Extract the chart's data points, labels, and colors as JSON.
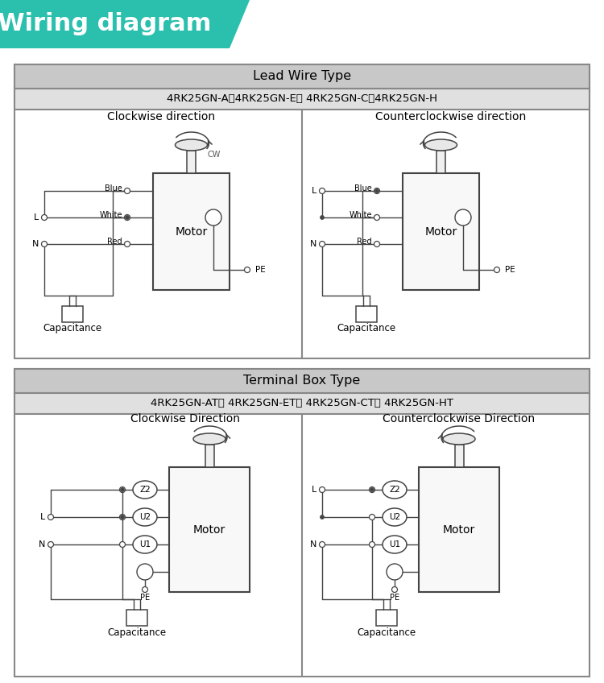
{
  "title": "Wiring diagram",
  "title_bg_color": "#2bbfad",
  "title_text_color": "#ffffff",
  "bg_color": "#ffffff",
  "section1_title": "Lead Wire Type",
  "section1_subtitle": "4RK25GN-A、4RK25GN-E、 4RK25GN-C、4RK25GN-H",
  "section2_title": "Terminal Box Type",
  "section2_subtitle": "4RK25GN-AT、 4RK25GN-ET、 4RK25GN-CT、 4RK25GN-HT",
  "header_bg_color": "#c8c8c8",
  "subheader_bg_color": "#e0e0e0",
  "border_color": "#888888",
  "line_color": "#444444",
  "motor_fill": "#f8f8f8",
  "cap_fill": "#e8e8e8"
}
